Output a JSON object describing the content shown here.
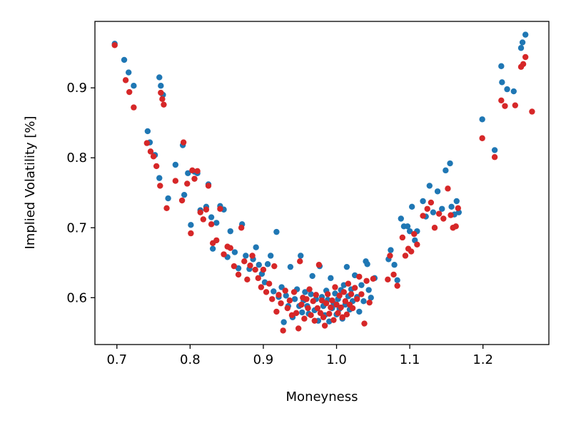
{
  "chart_data": {
    "type": "scatter",
    "xlabel": "Moneyness",
    "ylabel": "Implied Volatility [%]",
    "xlim": [
      0.67,
      1.29
    ],
    "ylim": [
      0.533,
      0.995
    ],
    "x_ticks": [
      0.7,
      0.8,
      0.9,
      1.0,
      1.1,
      1.2
    ],
    "x_tick_labels": [
      "0.7",
      "0.8",
      "0.9",
      "1.0",
      "1.1",
      "1.2"
    ],
    "y_ticks": [
      0.6,
      0.7,
      0.8,
      0.9
    ],
    "y_tick_labels": [
      "0.6",
      "0.7",
      "0.8",
      "0.9"
    ],
    "grid": false,
    "legend": "none",
    "series": [
      {
        "color": "#1f77b4",
        "points": [
          [
            0.697,
            0.963
          ],
          [
            0.71,
            0.94
          ],
          [
            0.716,
            0.922
          ],
          [
            0.723,
            0.903
          ],
          [
            0.742,
            0.838
          ],
          [
            0.745,
            0.822
          ],
          [
            0.752,
            0.804
          ],
          [
            0.758,
            0.915
          ],
          [
            0.76,
            0.903
          ],
          [
            0.763,
            0.89
          ],
          [
            0.758,
            0.771
          ],
          [
            0.77,
            0.742
          ],
          [
            0.78,
            0.79
          ],
          [
            0.79,
            0.818
          ],
          [
            0.792,
            0.747
          ],
          [
            0.797,
            0.778
          ],
          [
            0.801,
            0.704
          ],
          [
            0.806,
            0.78
          ],
          [
            0.81,
            0.778
          ],
          [
            0.814,
            0.725
          ],
          [
            0.822,
            0.73
          ],
          [
            0.825,
            0.762
          ],
          [
            0.829,
            0.715
          ],
          [
            0.831,
            0.67
          ],
          [
            0.836,
            0.707
          ],
          [
            0.841,
            0.731
          ],
          [
            0.846,
            0.726
          ],
          [
            0.851,
            0.658
          ],
          [
            0.855,
            0.695
          ],
          [
            0.861,
            0.665
          ],
          [
            0.866,
            0.642
          ],
          [
            0.871,
            0.705
          ],
          [
            0.876,
            0.66
          ],
          [
            0.881,
            0.641
          ],
          [
            0.886,
            0.655
          ],
          [
            0.89,
            0.672
          ],
          [
            0.894,
            0.647
          ],
          [
            0.898,
            0.634
          ],
          [
            0.902,
            0.622
          ],
          [
            0.906,
            0.648
          ],
          [
            0.91,
            0.66
          ],
          [
            0.914,
            0.609
          ],
          [
            0.918,
            0.694
          ],
          [
            0.921,
            0.601
          ],
          [
            0.925,
            0.615
          ],
          [
            0.928,
            0.565
          ],
          [
            0.931,
            0.603
          ],
          [
            0.934,
            0.588
          ],
          [
            0.937,
            0.644
          ],
          [
            0.94,
            0.572
          ],
          [
            0.943,
            0.598
          ],
          [
            0.946,
            0.612
          ],
          [
            0.949,
            0.588
          ],
          [
            0.951,
            0.66
          ],
          [
            0.953,
            0.579
          ],
          [
            0.955,
            0.596
          ],
          [
            0.957,
            0.608
          ],
          [
            0.96,
            0.588
          ],
          [
            0.962,
            0.577
          ],
          [
            0.965,
            0.605
          ],
          [
            0.967,
            0.631
          ],
          [
            0.97,
            0.582
          ],
          [
            0.972,
            0.598
          ],
          [
            0.975,
            0.567
          ],
          [
            0.977,
            0.645
          ],
          [
            0.98,
            0.601
          ],
          [
            0.982,
            0.588
          ],
          [
            0.984,
            0.575
          ],
          [
            0.986,
            0.61
          ],
          [
            0.988,
            0.597
          ],
          [
            0.99,
            0.566
          ],
          [
            0.992,
            0.628
          ],
          [
            0.994,
            0.585
          ],
          [
            0.996,
            0.592
          ],
          [
            0.998,
            0.606
          ],
          [
            1.0,
            0.576
          ],
          [
            1.002,
            0.598
          ],
          [
            1.004,
            0.584
          ],
          [
            1.006,
            0.611
          ],
          [
            1.008,
            0.57
          ],
          [
            1.01,
            0.618
          ],
          [
            1.012,
            0.59
          ],
          [
            1.014,
            0.644
          ],
          [
            1.016,
            0.602
          ],
          [
            1.018,
            0.583
          ],
          [
            1.02,
            0.612
          ],
          [
            1.022,
            0.595
          ],
          [
            1.025,
            0.632
          ],
          [
            1.028,
            0.601
          ],
          [
            1.031,
            0.58
          ],
          [
            1.034,
            0.618
          ],
          [
            1.037,
            0.595
          ],
          [
            1.04,
            0.652
          ],
          [
            1.042,
            0.648
          ],
          [
            1.044,
            0.611
          ],
          [
            1.047,
            0.6
          ],
          [
            1.052,
            0.628
          ],
          [
            1.071,
            0.655
          ],
          [
            1.074,
            0.668
          ],
          [
            1.079,
            0.647
          ],
          [
            1.083,
            0.625
          ],
          [
            1.088,
            0.713
          ],
          [
            1.092,
            0.702
          ],
          [
            1.097,
            0.702
          ],
          [
            1.1,
            0.695
          ],
          [
            1.103,
            0.73
          ],
          [
            1.107,
            0.682
          ],
          [
            1.11,
            0.695
          ],
          [
            1.118,
            0.738
          ],
          [
            1.122,
            0.716
          ],
          [
            1.127,
            0.76
          ],
          [
            1.132,
            0.722
          ],
          [
            1.138,
            0.752
          ],
          [
            1.144,
            0.727
          ],
          [
            1.149,
            0.782
          ],
          [
            1.155,
            0.792
          ],
          [
            1.157,
            0.73
          ],
          [
            1.161,
            0.719
          ],
          [
            1.164,
            0.738
          ],
          [
            1.167,
            0.722
          ],
          [
            1.199,
            0.855
          ],
          [
            1.216,
            0.811
          ],
          [
            1.225,
            0.931
          ],
          [
            1.226,
            0.908
          ],
          [
            1.233,
            0.898
          ],
          [
            1.242,
            0.895
          ],
          [
            1.252,
            0.957
          ],
          [
            1.254,
            0.965
          ],
          [
            1.258,
            0.976
          ]
        ]
      },
      {
        "color": "#d62728",
        "points": [
          [
            0.697,
            0.961
          ],
          [
            0.712,
            0.911
          ],
          [
            0.717,
            0.894
          ],
          [
            0.723,
            0.872
          ],
          [
            0.741,
            0.821
          ],
          [
            0.746,
            0.809
          ],
          [
            0.75,
            0.802
          ],
          [
            0.754,
            0.788
          ],
          [
            0.76,
            0.893
          ],
          [
            0.762,
            0.884
          ],
          [
            0.764,
            0.876
          ],
          [
            0.759,
            0.76
          ],
          [
            0.768,
            0.728
          ],
          [
            0.78,
            0.767
          ],
          [
            0.789,
            0.739
          ],
          [
            0.791,
            0.822
          ],
          [
            0.796,
            0.763
          ],
          [
            0.801,
            0.692
          ],
          [
            0.803,
            0.782
          ],
          [
            0.806,
            0.77
          ],
          [
            0.81,
            0.781
          ],
          [
            0.814,
            0.722
          ],
          [
            0.818,
            0.712
          ],
          [
            0.822,
            0.726
          ],
          [
            0.825,
            0.76
          ],
          [
            0.829,
            0.705
          ],
          [
            0.831,
            0.678
          ],
          [
            0.836,
            0.682
          ],
          [
            0.841,
            0.727
          ],
          [
            0.846,
            0.662
          ],
          [
            0.851,
            0.673
          ],
          [
            0.855,
            0.671
          ],
          [
            0.86,
            0.645
          ],
          [
            0.866,
            0.633
          ],
          [
            0.87,
            0.7
          ],
          [
            0.874,
            0.652
          ],
          [
            0.878,
            0.626
          ],
          [
            0.882,
            0.646
          ],
          [
            0.885,
            0.66
          ],
          [
            0.889,
            0.64
          ],
          [
            0.893,
            0.628
          ],
          [
            0.897,
            0.615
          ],
          [
            0.9,
            0.64
          ],
          [
            0.904,
            0.608
          ],
          [
            0.908,
            0.62
          ],
          [
            0.912,
            0.598
          ],
          [
            0.915,
            0.645
          ],
          [
            0.918,
            0.58
          ],
          [
            0.921,
            0.604
          ],
          [
            0.924,
            0.592
          ],
          [
            0.927,
            0.553
          ],
          [
            0.93,
            0.61
          ],
          [
            0.933,
            0.585
          ],
          [
            0.936,
            0.596
          ],
          [
            0.939,
            0.575
          ],
          [
            0.942,
            0.608
          ],
          [
            0.945,
            0.578
          ],
          [
            0.948,
            0.556
          ],
          [
            0.95,
            0.652
          ],
          [
            0.952,
            0.59
          ],
          [
            0.954,
            0.6
          ],
          [
            0.956,
            0.57
          ],
          [
            0.959,
            0.598
          ],
          [
            0.961,
            0.585
          ],
          [
            0.963,
            0.612
          ],
          [
            0.965,
            0.575
          ],
          [
            0.968,
            0.595
          ],
          [
            0.97,
            0.567
          ],
          [
            0.972,
            0.604
          ],
          [
            0.974,
            0.585
          ],
          [
            0.976,
            0.647
          ],
          [
            0.978,
            0.578
          ],
          [
            0.98,
            0.596
          ],
          [
            0.982,
            0.572
          ],
          [
            0.984,
            0.56
          ],
          [
            0.986,
            0.592
          ],
          [
            0.988,
            0.605
          ],
          [
            0.99,
            0.577
          ],
          [
            0.992,
            0.586
          ],
          [
            0.994,
            0.596
          ],
          [
            0.996,
            0.568
          ],
          [
            0.998,
            0.615
          ],
          [
            1.0,
            0.59
          ],
          [
            1.002,
            0.578
          ],
          [
            1.004,
            0.603
          ],
          [
            1.006,
            0.586
          ],
          [
            1.008,
            0.572
          ],
          [
            1.01,
            0.608
          ],
          [
            1.012,
            0.595
          ],
          [
            1.014,
            0.576
          ],
          [
            1.016,
            0.62
          ],
          [
            1.018,
            0.59
          ],
          [
            1.02,
            0.605
          ],
          [
            1.022,
            0.585
          ],
          [
            1.025,
            0.614
          ],
          [
            1.028,
            0.598
          ],
          [
            1.031,
            0.63
          ],
          [
            1.034,
            0.605
          ],
          [
            1.038,
            0.563
          ],
          [
            1.041,
            0.624
          ],
          [
            1.045,
            0.593
          ],
          [
            1.05,
            0.627
          ],
          [
            1.07,
            0.626
          ],
          [
            1.073,
            0.66
          ],
          [
            1.078,
            0.633
          ],
          [
            1.083,
            0.617
          ],
          [
            1.09,
            0.686
          ],
          [
            1.094,
            0.66
          ],
          [
            1.098,
            0.67
          ],
          [
            1.102,
            0.666
          ],
          [
            1.106,
            0.691
          ],
          [
            1.11,
            0.676
          ],
          [
            1.118,
            0.717
          ],
          [
            1.124,
            0.727
          ],
          [
            1.129,
            0.736
          ],
          [
            1.134,
            0.7
          ],
          [
            1.14,
            0.72
          ],
          [
            1.146,
            0.713
          ],
          [
            1.152,
            0.756
          ],
          [
            1.156,
            0.718
          ],
          [
            1.159,
            0.7
          ],
          [
            1.163,
            0.702
          ],
          [
            1.166,
            0.728
          ],
          [
            1.199,
            0.828
          ],
          [
            1.216,
            0.801
          ],
          [
            1.225,
            0.882
          ],
          [
            1.23,
            0.874
          ],
          [
            1.244,
            0.875
          ],
          [
            1.252,
            0.93
          ],
          [
            1.255,
            0.934
          ],
          [
            1.258,
            0.944
          ],
          [
            1.267,
            0.866
          ]
        ]
      }
    ]
  }
}
